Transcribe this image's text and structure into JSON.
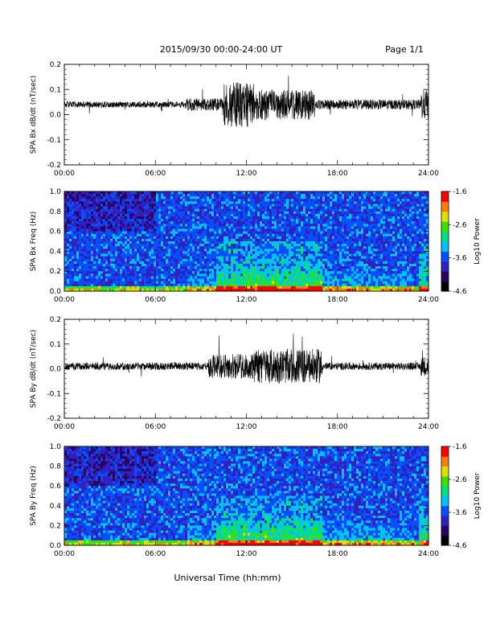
{
  "header": {
    "title": "2015/09/30  00:00-24:00 UT",
    "page": "Page 1/1"
  },
  "footer": {
    "xlabel": "Universal Time (hh:mm)"
  },
  "colors": {
    "trace": "#000000",
    "cmap": [
      "#000000",
      "#2a0060",
      "#3020c0",
      "#0050ff",
      "#00c0ff",
      "#00e080",
      "#40e000",
      "#e0e000",
      "#ff8000",
      "#ff0000"
    ]
  },
  "x_ticks": [
    "00:00",
    "06:00",
    "12:00",
    "18:00",
    "24:00"
  ],
  "chart_data": [
    {
      "type": "line",
      "ylabel": "SPA Bx dB/dt (nT/sec)",
      "ylim": [
        -0.2,
        0.2
      ],
      "y_ticks": [
        "0.2",
        "0.1",
        "0.0",
        "-0.1",
        "-0.2"
      ],
      "xlim_hours": [
        0,
        24
      ],
      "baseline": 0.04,
      "activity": [
        {
          "start": 0,
          "end": 8,
          "amplitude": 0.012
        },
        {
          "start": 8,
          "end": 10.5,
          "amplitude": 0.025
        },
        {
          "start": 10.5,
          "end": 12.5,
          "amplitude": 0.09
        },
        {
          "start": 12.5,
          "end": 16.5,
          "amplitude": 0.06
        },
        {
          "start": 16.5,
          "end": 23.5,
          "amplitude": 0.02
        },
        {
          "start": 23.5,
          "end": 24,
          "amplitude": 0.06
        }
      ]
    },
    {
      "type": "heatmap",
      "ylabel": "SPA Bx Freq (Hz)",
      "ylim": [
        0.0,
        1.0
      ],
      "y_ticks": [
        "1.0",
        "0.8",
        "0.6",
        "0.4",
        "0.2",
        "0.0"
      ],
      "colorbar": {
        "label": "Log10 Power",
        "ticks": [
          "-1.6",
          "-2.6",
          "-3.6",
          "-4.6"
        ],
        "range": [
          -4.6,
          -1.6
        ]
      }
    },
    {
      "type": "line",
      "ylabel": "SPA By dB/dt (nT/sec)",
      "ylim": [
        -0.2,
        0.2
      ],
      "y_ticks": [
        "0.2",
        "0.1",
        "0.0",
        "-0.1",
        "-0.2"
      ],
      "xlim_hours": [
        0,
        24
      ],
      "baseline": 0.01,
      "activity": [
        {
          "start": 0,
          "end": 9.5,
          "amplitude": 0.015
        },
        {
          "start": 9.5,
          "end": 12.5,
          "amplitude": 0.05
        },
        {
          "start": 12.5,
          "end": 17,
          "amplitude": 0.07
        },
        {
          "start": 17,
          "end": 23.5,
          "amplitude": 0.015
        },
        {
          "start": 23.5,
          "end": 24,
          "amplitude": 0.04
        }
      ]
    },
    {
      "type": "heatmap",
      "ylabel": "SPA By Freq (Hz)",
      "ylim": [
        0.0,
        1.0
      ],
      "y_ticks": [
        "1.0",
        "0.8",
        "0.6",
        "0.4",
        "0.2",
        "0.0"
      ],
      "colorbar": {
        "label": "Log10 Power",
        "ticks": [
          "-1.6",
          "-2.6",
          "-3.6",
          "-4.6"
        ],
        "range": [
          -4.6,
          -1.6
        ]
      }
    }
  ]
}
